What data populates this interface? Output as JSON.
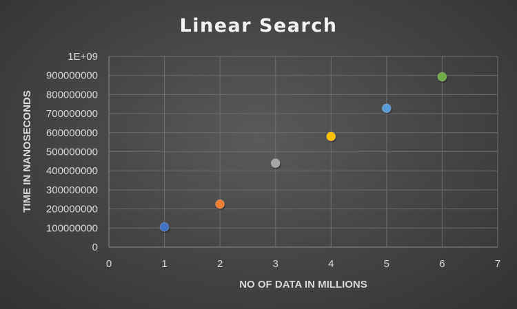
{
  "chart_data": {
    "type": "scatter",
    "title": "Linear Search",
    "xlabel": "NO OF DATA IN MILLIONS",
    "ylabel": "TIME IN NANOSECONDS",
    "xlim": [
      0,
      7
    ],
    "ylim": [
      0,
      1000000000
    ],
    "x_ticks": [
      0,
      1,
      2,
      3,
      4,
      5,
      6,
      7
    ],
    "x_tick_labels": [
      "0",
      "1",
      "2",
      "3",
      "4",
      "5",
      "6",
      "7"
    ],
    "y_ticks": [
      0,
      100000000,
      200000000,
      300000000,
      400000000,
      500000000,
      600000000,
      700000000,
      800000000,
      900000000,
      1000000000
    ],
    "y_tick_labels": [
      "0",
      "100000000",
      "200000000",
      "300000000",
      "400000000",
      "500000000",
      "600000000",
      "700000000",
      "800000000",
      "900000000",
      "1E+09"
    ],
    "grid": true,
    "legend": "none",
    "points": [
      {
        "x": 1,
        "y": 105000000,
        "color": "#4472c4"
      },
      {
        "x": 2,
        "y": 225000000,
        "color": "#ed7d31"
      },
      {
        "x": 3,
        "y": 440000000,
        "color": "#a5a5a5"
      },
      {
        "x": 4,
        "y": 580000000,
        "color": "#ffc000"
      },
      {
        "x": 5,
        "y": 728000000,
        "color": "#5b9bd5"
      },
      {
        "x": 6,
        "y": 893000000,
        "color": "#70ad47"
      }
    ]
  }
}
